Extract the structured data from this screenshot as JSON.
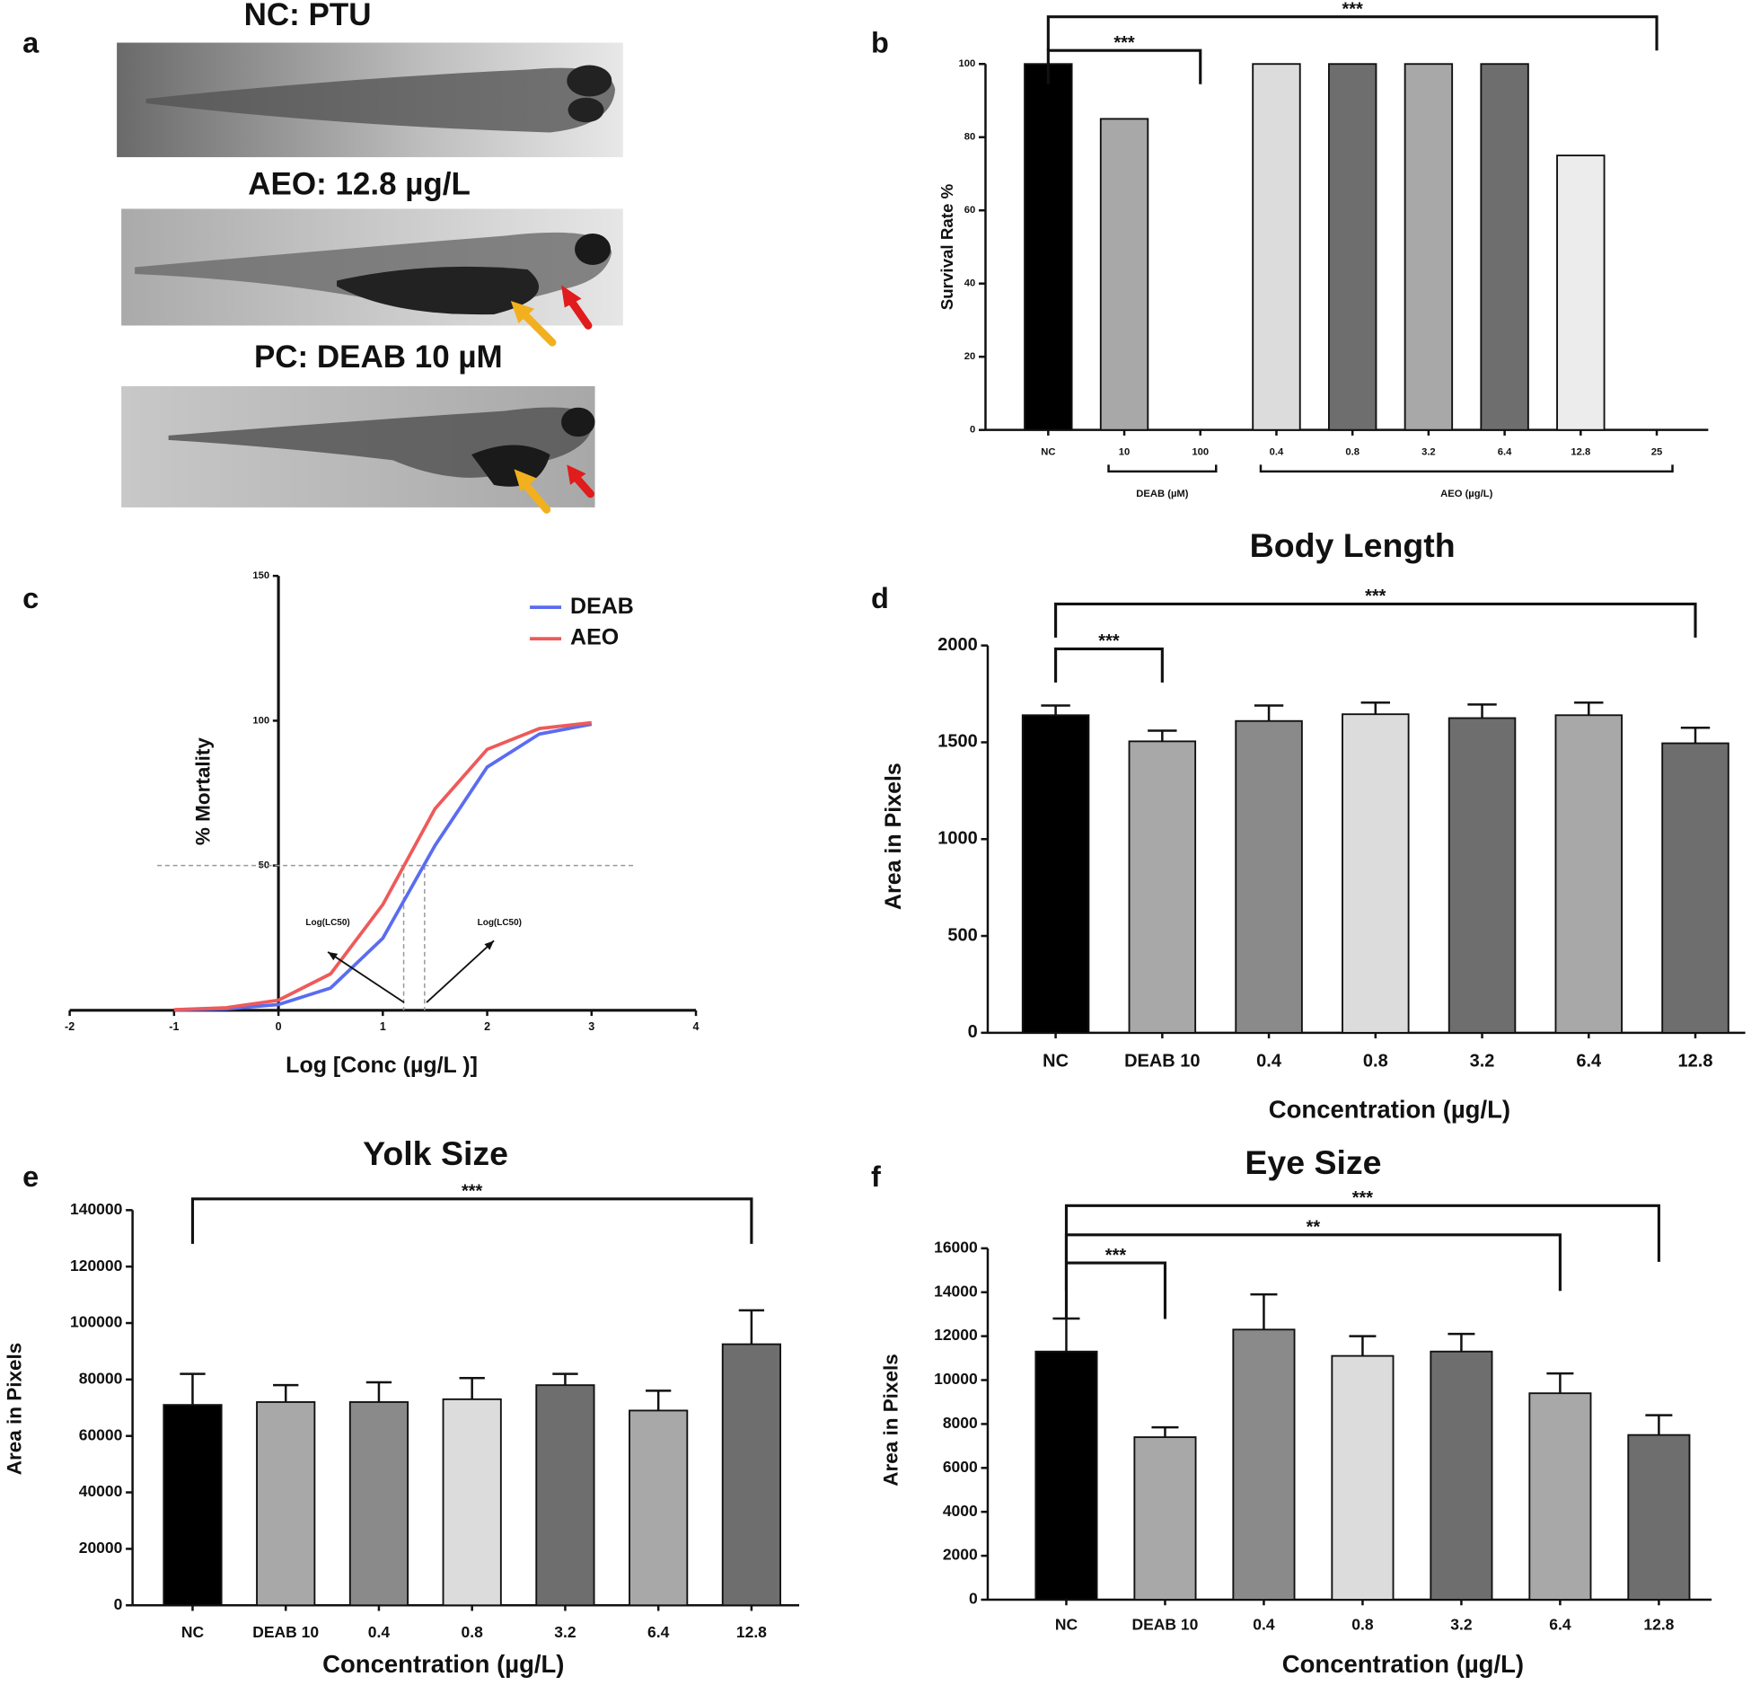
{
  "panel_labels": [
    "a",
    "b",
    "c",
    "d",
    "e",
    "f"
  ],
  "image_panel": {
    "captions": [
      "NC: PTU",
      "AEO: 12.8 µg/L",
      "PC: DEAB 10 µM"
    ]
  },
  "chart_data": [
    {
      "type": "bar",
      "ylabel": "Survival Rate %",
      "categories": [
        "NC",
        "10",
        "100",
        "0.4",
        "0.8",
        "3.2",
        "6.4",
        "12.8",
        "25"
      ],
      "values": [
        100,
        85,
        0,
        100,
        100,
        100,
        100,
        75,
        0
      ],
      "colors": [
        "#000000",
        "#a8a8a8",
        "#a8a8a8",
        "#dcdcdc",
        "#6e6e6e",
        "#a8a8a8",
        "#6e6e6e",
        "#ececec",
        "#ececec"
      ],
      "ylim": [
        0,
        100
      ],
      "yticks": [
        0,
        20,
        40,
        60,
        80,
        100
      ],
      "groups": [
        {
          "label": "DEAB (µM)",
          "from": 1,
          "to": 2
        },
        {
          "label": "AEO (µg/L)",
          "from": 3,
          "to": 8
        }
      ],
      "brackets": [
        {
          "from": 0,
          "to": 8,
          "label": "***"
        },
        {
          "from": 0,
          "to": 2,
          "label": "***"
        }
      ]
    },
    {
      "type": "line",
      "xlabel": "Log [Conc (µg/L )]",
      "ylabel": "% Mortality",
      "x": [
        -1,
        -0.5,
        0,
        0.5,
        1,
        1.5,
        2,
        2.5,
        3
      ],
      "series": [
        {
          "name": "DEAB",
          "color": "#5a6cf0",
          "values": [
            0.13,
            0.5,
            2.0,
            7.7,
            24.9,
            56.9,
            84,
            95.4,
            98.8
          ]
        },
        {
          "name": "AEO",
          "color": "#ee5a5a",
          "values": [
            0.23,
            0.9,
            3.5,
            12.6,
            36.5,
            69.6,
            90.1,
            97.3,
            99.3
          ]
        }
      ],
      "xlim": [
        -2,
        4
      ],
      "xticks": [
        -2,
        -1,
        0,
        1,
        2,
        3,
        4
      ],
      "ylim": [
        0,
        150
      ],
      "yticks": [
        50,
        100,
        150
      ],
      "hline": 50,
      "vlines": [
        1.2,
        1.4
      ],
      "annotations": [
        "Log(LC50)",
        "Log(LC50)"
      ],
      "legend": "top-right"
    },
    {
      "type": "bar",
      "title": "Body Length",
      "xlabel": "Concentration (µg/L)",
      "ylabel": "Area in Pixels",
      "categories": [
        "NC",
        "DEAB 10",
        "0.4",
        "0.8",
        "3.2",
        "6.4",
        "12.8"
      ],
      "values": [
        1640,
        1505,
        1610,
        1645,
        1625,
        1640,
        1495
      ],
      "errors": [
        50,
        55,
        80,
        60,
        70,
        65,
        80
      ],
      "colors": [
        "#000000",
        "#a8a8a8",
        "#8a8a8a",
        "#dcdcdc",
        "#6e6e6e",
        "#a8a8a8",
        "#6e6e6e"
      ],
      "ylim": [
        0,
        2000
      ],
      "yticks": [
        0,
        500,
        1000,
        1500,
        2000
      ],
      "brackets": [
        {
          "from": 0,
          "to": 6,
          "label": "***"
        },
        {
          "from": 0,
          "to": 1,
          "label": "***"
        }
      ]
    },
    {
      "type": "bar",
      "title": "Yolk Size",
      "xlabel": "Concentration (µg/L)",
      "ylabel": "Area in Pixels",
      "categories": [
        "NC",
        "DEAB 10",
        "0.4",
        "0.8",
        "3.2",
        "6.4",
        "12.8"
      ],
      "values": [
        71000,
        72000,
        72000,
        73000,
        78000,
        69000,
        92500
      ],
      "errors": [
        11000,
        6000,
        7000,
        7500,
        4000,
        7000,
        12000
      ],
      "colors": [
        "#000000",
        "#a8a8a8",
        "#8a8a8a",
        "#dcdcdc",
        "#6e6e6e",
        "#a8a8a8",
        "#6e6e6e"
      ],
      "ylim": [
        0,
        140000
      ],
      "yticks": [
        0,
        20000,
        40000,
        60000,
        80000,
        100000,
        120000,
        140000
      ],
      "brackets": [
        {
          "from": 0,
          "to": 6,
          "label": "***"
        }
      ]
    },
    {
      "type": "bar",
      "title": "Eye Size",
      "xlabel": "Concentration (µg/L)",
      "ylabel": "Area in Pixels",
      "categories": [
        "NC",
        "DEAB 10",
        "0.4",
        "0.8",
        "3.2",
        "6.4",
        "12.8"
      ],
      "values": [
        11300,
        7400,
        12300,
        11100,
        11300,
        9400,
        7500
      ],
      "errors": [
        1500,
        450,
        1600,
        900,
        800,
        900,
        900
      ],
      "colors": [
        "#000000",
        "#a8a8a8",
        "#8a8a8a",
        "#dcdcdc",
        "#6e6e6e",
        "#a8a8a8",
        "#6e6e6e"
      ],
      "ylim": [
        0,
        16000
      ],
      "yticks": [
        0,
        2000,
        4000,
        6000,
        8000,
        10000,
        12000,
        14000,
        16000
      ],
      "brackets": [
        {
          "from": 0,
          "to": 6,
          "label": "***"
        },
        {
          "from": 0,
          "to": 5,
          "label": "**"
        },
        {
          "from": 0,
          "to": 1,
          "label": "***"
        }
      ]
    }
  ]
}
